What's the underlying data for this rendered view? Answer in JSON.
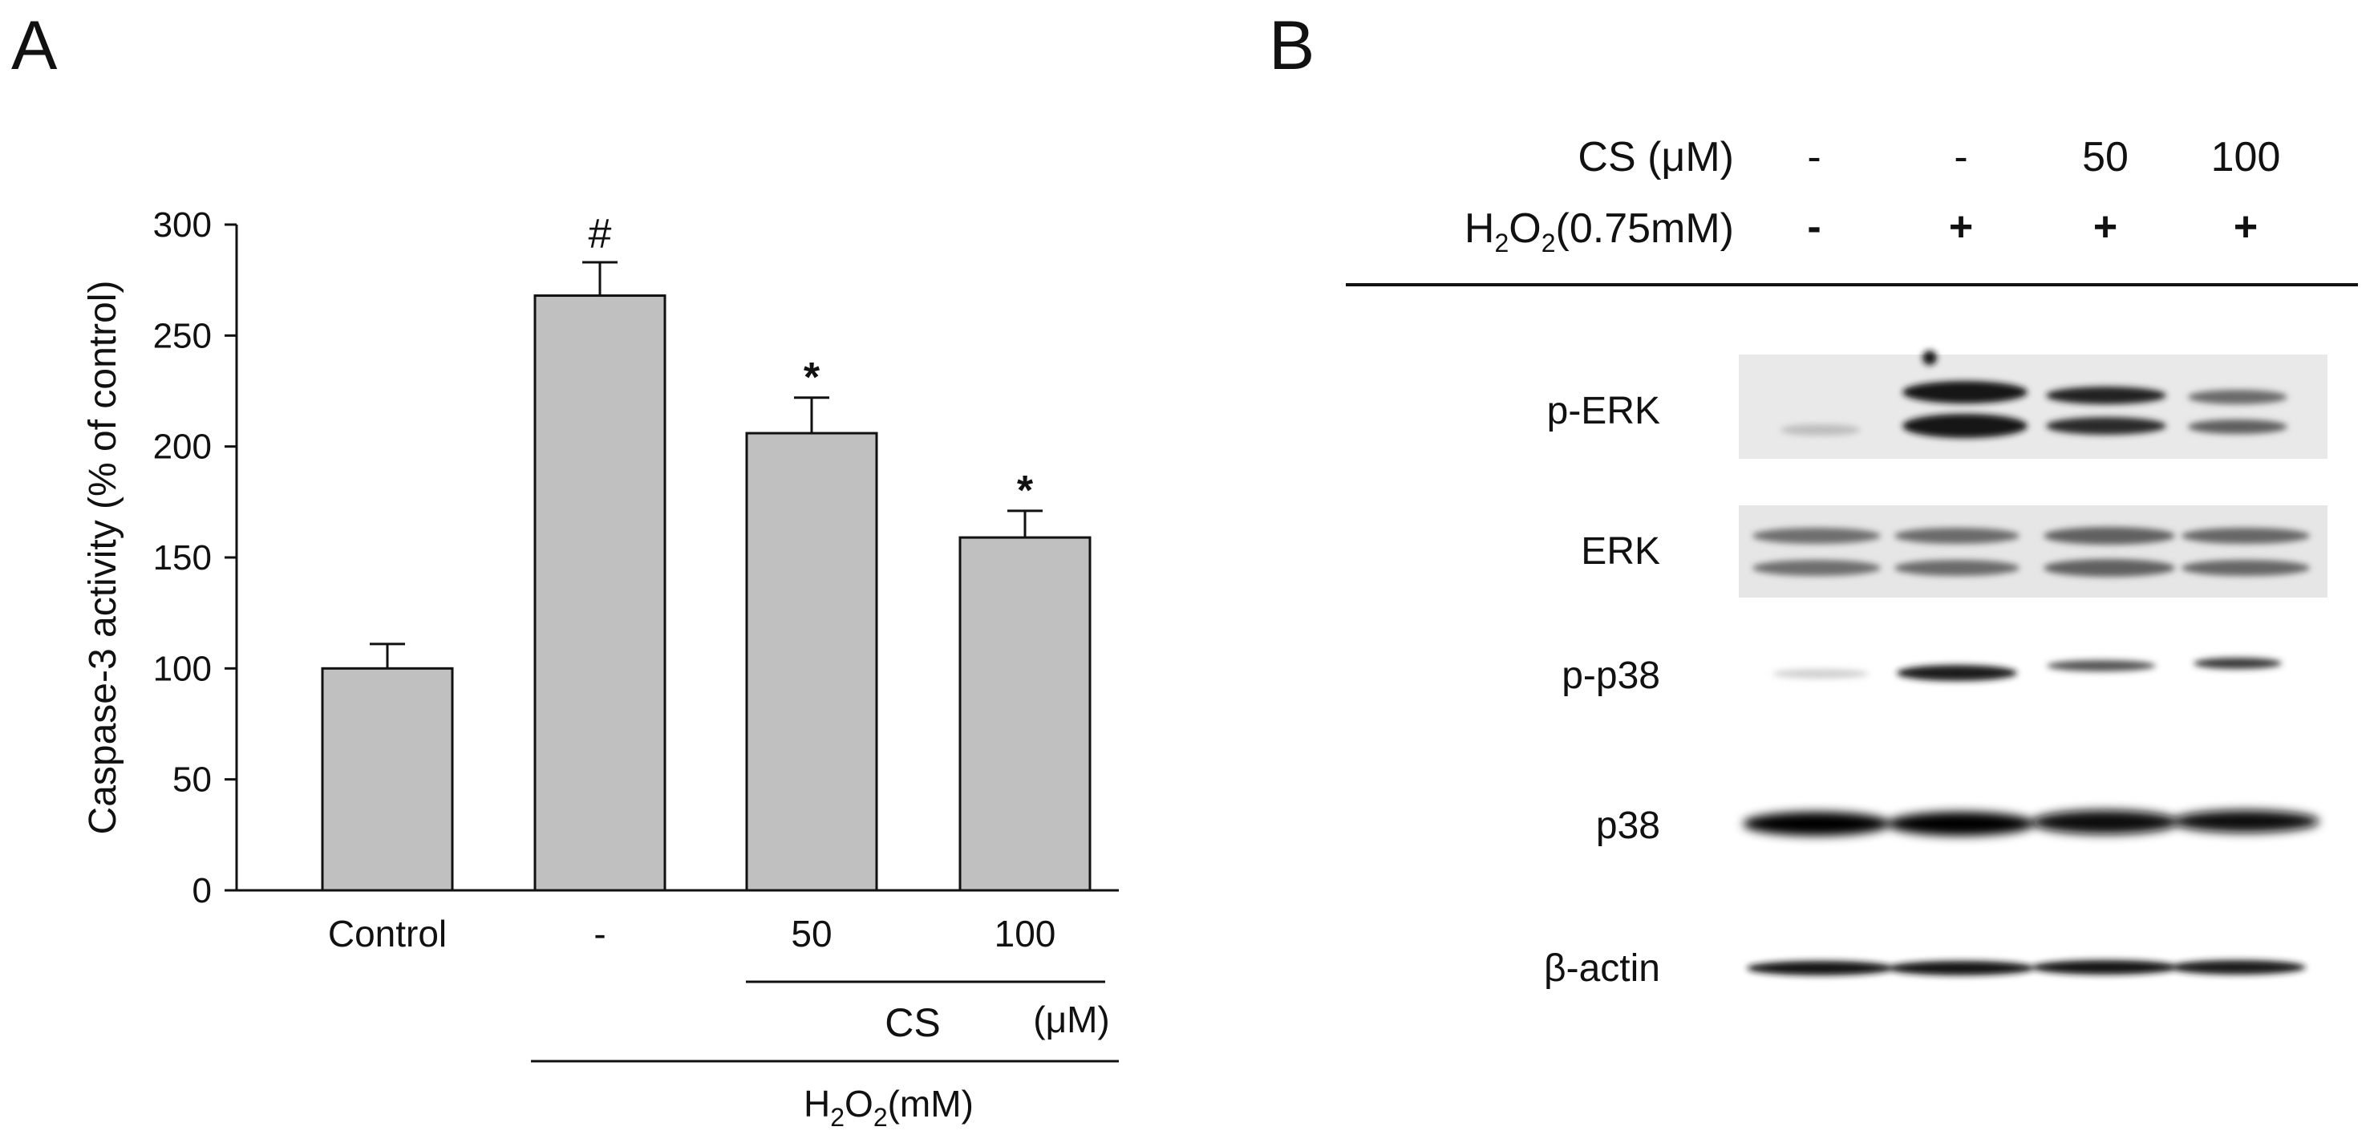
{
  "panels": {
    "a_label": "A",
    "b_label": "B"
  },
  "chart_data": {
    "type": "bar",
    "title": "",
    "xlabel": "",
    "ylabel": "Caspase-3 activity (% of control)",
    "ylim": [
      0,
      300
    ],
    "yticks": [
      0,
      50,
      100,
      150,
      200,
      250,
      300
    ],
    "categories": [
      "Control",
      "-",
      "50",
      "100"
    ],
    "values": [
      100,
      268,
      206,
      159
    ],
    "errors": [
      11,
      15,
      16,
      12
    ],
    "annotations": [
      "",
      "#",
      "*",
      "*"
    ],
    "bar_color": "#c0c0c0",
    "grid": false,
    "groups": {
      "cs_name": "CS",
      "cs_unit": "(μM)",
      "h2o2_main": "H",
      "h2o2_sub1": "2",
      "h2o2_mid": "O",
      "h2o2_sub2": "2",
      "h2o2_unit": "(mM)"
    }
  },
  "blot": {
    "cs_header": "CS (μM)",
    "cs_values": [
      "-",
      "-",
      "50",
      "100"
    ],
    "h2o2_main": "H",
    "h2o2_sub1": "2",
    "h2o2_mid": "O",
    "h2o2_sub2": "2",
    "h2o2_rest": "(0.75mM)",
    "h2o2_values": [
      "-",
      "+",
      "+",
      "+"
    ],
    "rows": [
      {
        "label": "p-ERK"
      },
      {
        "label": "ERK"
      },
      {
        "label": "p-p38"
      },
      {
        "label": "p38"
      },
      {
        "label": "β-actin"
      }
    ]
  }
}
